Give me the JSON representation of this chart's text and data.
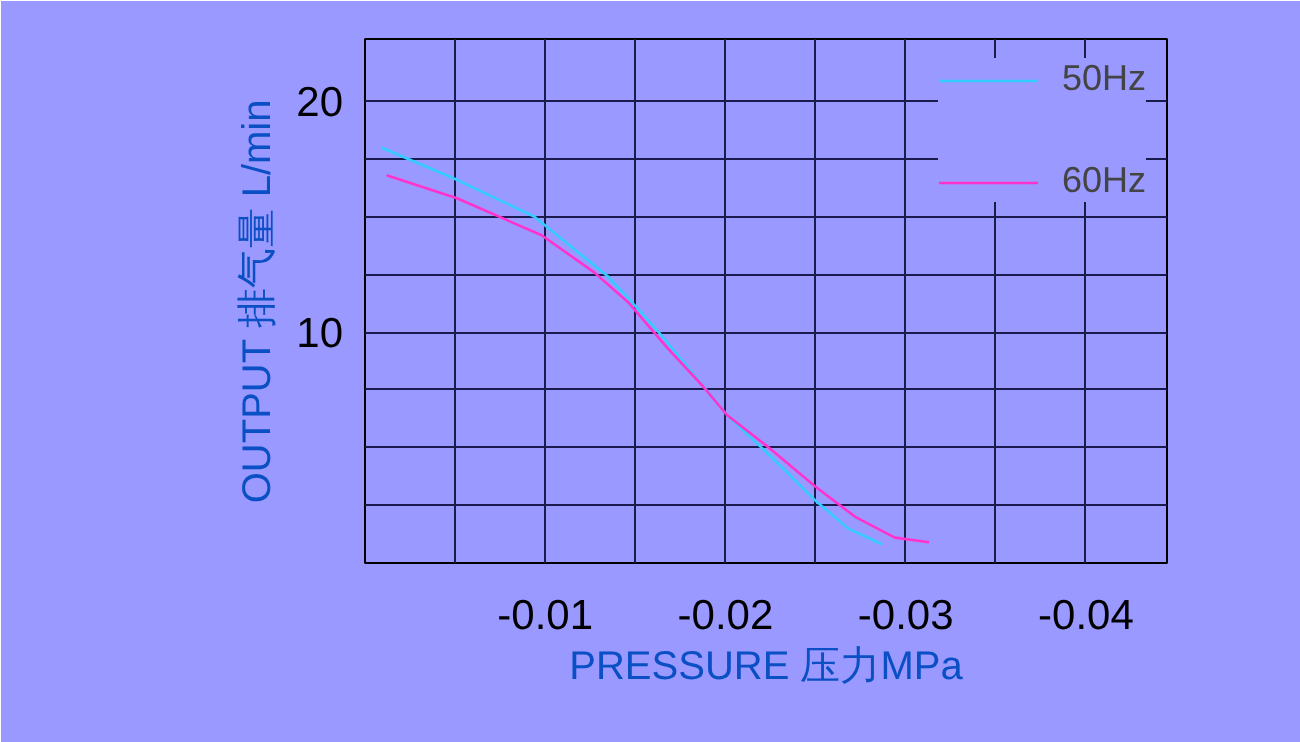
{
  "chart_data": {
    "type": "line",
    "xlabel": "PRESSURE 压力MPa",
    "ylabel": "OUTPUT 排气量 L/min",
    "xlim": [
      0,
      -0.0445
    ],
    "ylim": [
      0,
      22.7
    ],
    "xticks": [
      {
        "value": 0,
        "label": null
      },
      {
        "value": -0.005,
        "label": null
      },
      -0.01,
      {
        "value": -0.015,
        "label": null
      },
      -0.02,
      {
        "value": -0.025,
        "label": null
      },
      -0.03,
      {
        "value": -0.035,
        "label": null
      },
      -0.04
    ],
    "yticks": [
      {
        "value": 2.5,
        "label": null
      },
      {
        "value": 5,
        "label": null
      },
      {
        "value": 7.5,
        "label": null
      },
      10,
      {
        "value": 12.5,
        "label": null
      },
      {
        "value": 15,
        "label": null
      },
      {
        "value": 17.5,
        "label": null
      },
      20
    ],
    "grid": true,
    "legend": "top right",
    "marker": "none",
    "line_style": "solid",
    "series": [
      {
        "name": "50Hz",
        "color": "#33ccff",
        "x": [
          -0.0009,
          -0.0051,
          -0.0094,
          -0.0135,
          -0.0148,
          -0.0164,
          -0.0183,
          -0.0201,
          -0.0224,
          -0.025,
          -0.0268,
          -0.0287
        ],
        "values": [
          18.0,
          16.6,
          15.0,
          12.4,
          11.3,
          9.9,
          8.1,
          6.4,
          4.7,
          2.7,
          1.5,
          0.8
        ]
      },
      {
        "name": "60Hz",
        "color": "#ff33cc",
        "x": [
          -0.0012,
          -0.0051,
          -0.0098,
          -0.0127,
          -0.0146,
          -0.0168,
          -0.0187,
          -0.0201,
          -0.0224,
          -0.025,
          -0.0272,
          -0.0294,
          -0.0313
        ],
        "values": [
          16.8,
          15.8,
          14.2,
          12.6,
          11.3,
          9.3,
          7.7,
          6.4,
          5.0,
          3.3,
          2.0,
          1.1,
          0.9
        ]
      }
    ]
  }
}
